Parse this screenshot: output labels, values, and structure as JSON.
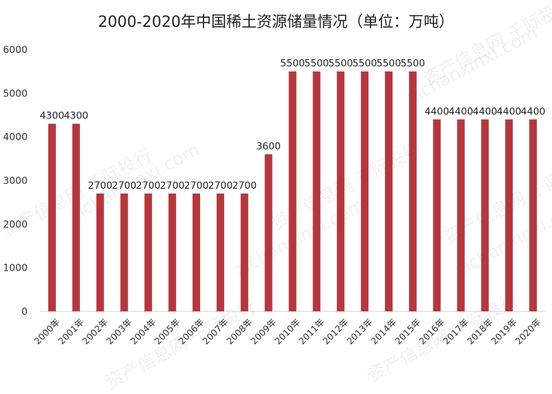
{
  "chart_data": {
    "type": "bar",
    "title": "2000-2020年中国稀土资源储量情况（单位：万吨）",
    "categories": [
      "2000年",
      "2001年",
      "2002年",
      "2003年",
      "2004年",
      "2005年",
      "2006年",
      "2007年",
      "2008年",
      "2009年",
      "2010年",
      "2011年",
      "2012年",
      "2013年",
      "2014年",
      "2015年",
      "2016年",
      "2017年",
      "2018年",
      "2019年",
      "2020年"
    ],
    "values": [
      4300,
      4300,
      2700,
      2700,
      2700,
      2700,
      2700,
      2700,
      2700,
      3600,
      5500,
      5500,
      5500,
      5500,
      5500,
      5500,
      4400,
      4400,
      4400,
      4400,
      4400
    ],
    "ylim": [
      0,
      6000
    ],
    "yticks": [
      0,
      1000,
      2000,
      3000,
      4000,
      5000,
      6000
    ],
    "bar_color": "#b5373e",
    "grid": false,
    "data_labels": true
  },
  "watermark": {
    "text_cn": "资产信息网 千际投行",
    "text_en": "zichanxinxi.com"
  }
}
